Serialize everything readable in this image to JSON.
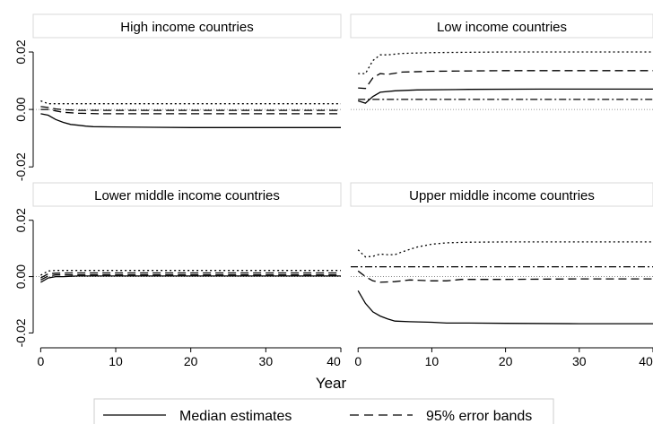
{
  "chart_data": {
    "type": "line",
    "xlabel": "Year",
    "xticks": [
      0,
      10,
      20,
      30,
      40
    ],
    "yticks": [
      "0.02",
      "0.00",
      "-0.02"
    ],
    "yticks_values": [
      0.02,
      0.0,
      -0.02
    ],
    "xlim": [
      -1,
      40
    ],
    "ylim": [
      -0.024,
      0.025
    ],
    "zero_line": 0.0,
    "legend": {
      "placement": "bottom",
      "items": [
        {
          "label": "Median estimates",
          "style": "solid"
        },
        {
          "label": "95% error bands",
          "style": "dashed"
        }
      ]
    },
    "panels": [
      {
        "title": "High income countries",
        "series": [
          {
            "style": "solid",
            "points": [
              [
                0,
                -0.0015
              ],
              [
                1,
                -0.002
              ],
              [
                2,
                -0.0035
              ],
              [
                3,
                -0.0045
              ],
              [
                4,
                -0.0052
              ],
              [
                5,
                -0.0055
              ],
              [
                6,
                -0.0058
              ],
              [
                7,
                -0.006
              ],
              [
                10,
                -0.0061
              ],
              [
                15,
                -0.0062
              ],
              [
                20,
                -0.0063
              ],
              [
                25,
                -0.0063
              ],
              [
                30,
                -0.0063
              ],
              [
                35,
                -0.0063
              ],
              [
                40,
                -0.0063
              ]
            ]
          },
          {
            "style": "dashed",
            "points": [
              [
                0,
                0.0
              ],
              [
                1,
                0.0
              ],
              [
                2,
                -0.0005
              ],
              [
                3,
                -0.001
              ],
              [
                5,
                -0.0013
              ],
              [
                8,
                -0.0015
              ],
              [
                15,
                -0.0015
              ],
              [
                25,
                -0.0015
              ],
              [
                40,
                -0.0015
              ]
            ]
          },
          {
            "style": "dotted",
            "points": [
              [
                0,
                0.003
              ],
              [
                1,
                0.002
              ],
              [
                2,
                0.002
              ],
              [
                5,
                0.002
              ],
              [
                15,
                0.002
              ],
              [
                40,
                0.002
              ]
            ]
          },
          {
            "style": "dashed",
            "points": [
              [
                0,
                0.001
              ],
              [
                1,
                0.0007
              ],
              [
                2,
                0.0002
              ],
              [
                3,
                -0.0001
              ],
              [
                5,
                -0.0003
              ],
              [
                10,
                -0.0003
              ],
              [
                40,
                -0.0003
              ]
            ]
          }
        ]
      },
      {
        "title": "Low income countries",
        "series": [
          {
            "style": "dotted",
            "points": [
              [
                0,
                0.0125
              ],
              [
                1,
                0.0125
              ],
              [
                2,
                0.017
              ],
              [
                3,
                0.019
              ],
              [
                4,
                0.019
              ],
              [
                6,
                0.0195
              ],
              [
                10,
                0.0198
              ],
              [
                20,
                0.02
              ],
              [
                40,
                0.02
              ]
            ]
          },
          {
            "style": "dashed",
            "points": [
              [
                0,
                0.0075
              ],
              [
                1,
                0.0073
              ],
              [
                2,
                0.011
              ],
              [
                3,
                0.0125
              ],
              [
                4,
                0.0122
              ],
              [
                6,
                0.013
              ],
              [
                10,
                0.0133
              ],
              [
                20,
                0.0135
              ],
              [
                40,
                0.0135
              ]
            ]
          },
          {
            "style": "solid",
            "points": [
              [
                0,
                0.003
              ],
              [
                1,
                0.0022
              ],
              [
                2,
                0.0045
              ],
              [
                3,
                0.006
              ],
              [
                5,
                0.0065
              ],
              [
                8,
                0.0068
              ],
              [
                15,
                0.007
              ],
              [
                25,
                0.0071
              ],
              [
                40,
                0.0071
              ]
            ]
          },
          {
            "style": "dashdot",
            "points": [
              [
                0,
                0.0035
              ],
              [
                40,
                0.0035
              ]
            ]
          }
        ]
      },
      {
        "title": "Lower middle income countries",
        "series": [
          {
            "style": "solid",
            "points": [
              [
                0,
                -0.002
              ],
              [
                1,
                -0.0005
              ],
              [
                2,
                0.0
              ],
              [
                3,
                0.0
              ],
              [
                5,
                0.0002
              ],
              [
                10,
                0.0002
              ],
              [
                20,
                0.0002
              ],
              [
                40,
                0.0002
              ]
            ]
          },
          {
            "style": "dashed",
            "points": [
              [
                0,
                -0.0005
              ],
              [
                1,
                0.001
              ],
              [
                2,
                0.0012
              ],
              [
                4,
                0.0013
              ],
              [
                10,
                0.0013
              ],
              [
                40,
                0.0013
              ]
            ]
          },
          {
            "style": "dotted",
            "points": [
              [
                0,
                0.0005
              ],
              [
                1,
                0.002
              ],
              [
                2,
                0.0022
              ],
              [
                4,
                0.0022
              ],
              [
                10,
                0.0022
              ],
              [
                40,
                0.0022
              ]
            ]
          },
          {
            "style": "dashed",
            "points": [
              [
                0,
                -0.0012
              ],
              [
                1,
                0.0002
              ],
              [
                2,
                0.0006
              ],
              [
                4,
                0.0006
              ],
              [
                40,
                0.0006
              ]
            ]
          }
        ]
      },
      {
        "title": "Upper middle income countries",
        "series": [
          {
            "style": "dotted",
            "points": [
              [
                0,
                0.0095
              ],
              [
                1,
                0.007
              ],
              [
                2,
                0.0072
              ],
              [
                3,
                0.008
              ],
              [
                4,
                0.0078
              ],
              [
                5,
                0.0078
              ],
              [
                6,
                0.0088
              ],
              [
                8,
                0.0105
              ],
              [
                10,
                0.0115
              ],
              [
                12,
                0.012
              ],
              [
                15,
                0.0122
              ],
              [
                20,
                0.0123
              ],
              [
                30,
                0.0123
              ],
              [
                40,
                0.0123
              ]
            ]
          },
          {
            "style": "dashdot",
            "points": [
              [
                -1,
                0.0035
              ],
              [
                40,
                0.0035
              ]
            ]
          },
          {
            "style": "dashed",
            "points": [
              [
                0,
                0.002
              ],
              [
                1,
                0.0
              ],
              [
                2,
                -0.0015
              ],
              [
                3,
                -0.002
              ],
              [
                5,
                -0.0018
              ],
              [
                7,
                -0.0012
              ],
              [
                10,
                -0.0015
              ],
              [
                12,
                -0.0015
              ],
              [
                14,
                -0.001
              ],
              [
                20,
                -0.001
              ],
              [
                30,
                -0.0008
              ],
              [
                40,
                -0.0008
              ]
            ]
          },
          {
            "style": "solid",
            "points": [
              [
                0,
                -0.005
              ],
              [
                1,
                -0.0095
              ],
              [
                2,
                -0.0125
              ],
              [
                3,
                -0.014
              ],
              [
                4,
                -0.015
              ],
              [
                5,
                -0.0158
              ],
              [
                7,
                -0.016
              ],
              [
                10,
                -0.0162
              ],
              [
                12,
                -0.0165
              ],
              [
                15,
                -0.0165
              ],
              [
                20,
                -0.0166
              ],
              [
                30,
                -0.0167
              ],
              [
                40,
                -0.0167
              ]
            ]
          }
        ]
      }
    ]
  }
}
